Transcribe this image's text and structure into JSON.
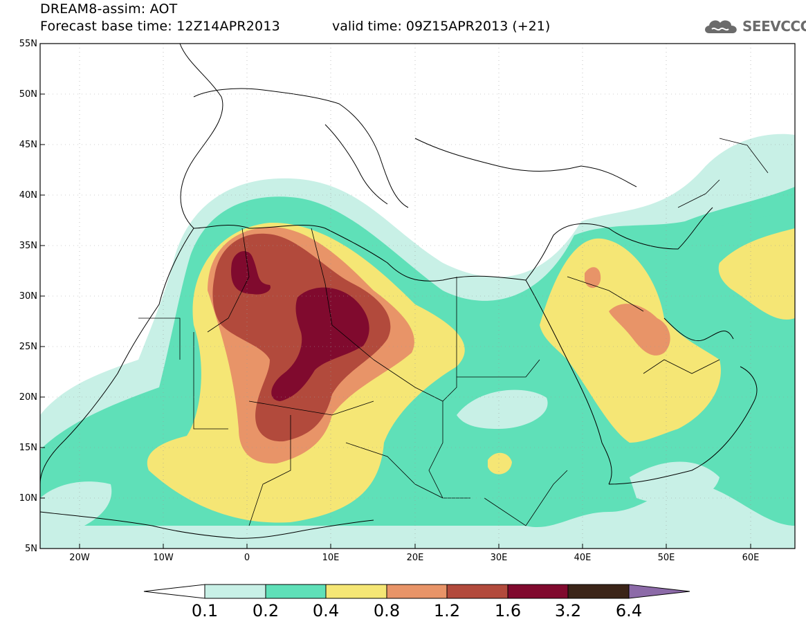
{
  "header": {
    "title_line1": "DREAM8-assim: AOT",
    "title_line2": "Forecast base time: 12Z14APR2013",
    "valid_time": "valid time: 09Z15APR2013 (+21)",
    "logo_text": "SEEVCCC"
  },
  "axes": {
    "lat_labels": [
      "55N",
      "50N",
      "45N",
      "40N",
      "35N",
      "30N",
      "25N",
      "20N",
      "15N",
      "10N",
      "5N"
    ],
    "lon_labels": [
      "20W",
      "10W",
      "0",
      "10E",
      "20E",
      "30E",
      "40E",
      "50E",
      "60E"
    ],
    "lon_range": [
      -25,
      65
    ],
    "lat_range": [
      5,
      55
    ]
  },
  "colorbar": {
    "labels": [
      "0.1",
      "0.2",
      "0.4",
      "0.8",
      "1.2",
      "1.6",
      "3.2",
      "6.4"
    ],
    "colors": [
      "#c8f0e6",
      "#5fe0b8",
      "#f5e675",
      "#e89468",
      "#b24a3c",
      "#800a2e",
      "#3b2418"
    ],
    "over_color": "#8c6aa8",
    "under_color": "#ffffff"
  },
  "colors": {
    "level_0_1": "#c8f0e6",
    "level_0_2": "#5fe0b8",
    "level_0_4": "#f5e675",
    "level_0_8": "#e89468",
    "level_1_2": "#b24a3c",
    "level_1_6": "#800a2e"
  }
}
